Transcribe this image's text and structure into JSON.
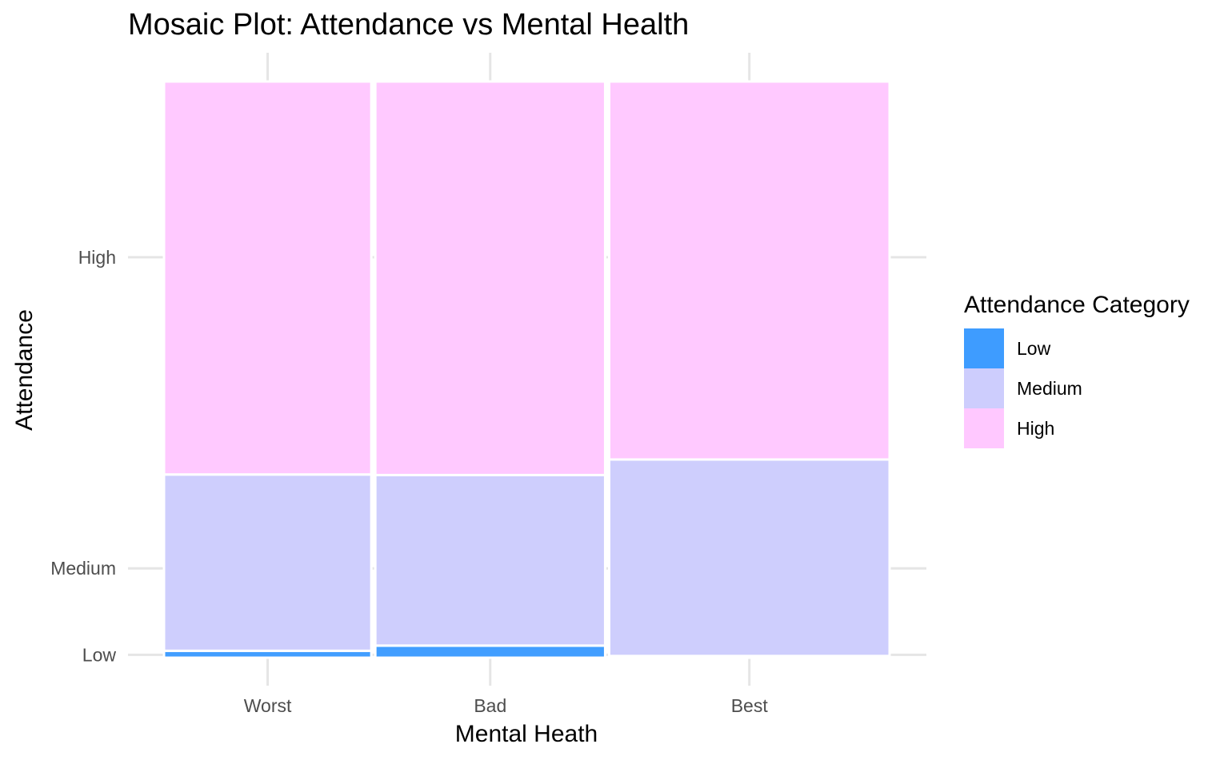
{
  "chart_data": {
    "type": "mosaic",
    "title": "Mosaic Plot: Attendance vs Mental Health",
    "xlabel": "Mental Heath",
    "ylabel": "Attendance",
    "categories": [
      "Worst",
      "Bad",
      "Best"
    ],
    "column_widths": [
      0.258,
      0.286,
      0.349
    ],
    "y_tick_labels": [
      "High",
      "Medium",
      "Low"
    ],
    "y_ticks": [
      0.695,
      0.155,
      0.005
    ],
    "series": [
      {
        "name": "Low",
        "color": "#3e9cff",
        "values": [
          0.012,
          0.021,
          0.003
        ]
      },
      {
        "name": "Medium",
        "color": "#cdcdfd",
        "values": [
          0.306,
          0.296,
          0.341
        ]
      },
      {
        "name": "High",
        "color": "#ffc8ff",
        "values": [
          0.682,
          0.683,
          0.656
        ]
      }
    ],
    "legend": {
      "title": "Attendance Category",
      "position": "right"
    },
    "grid": true
  }
}
